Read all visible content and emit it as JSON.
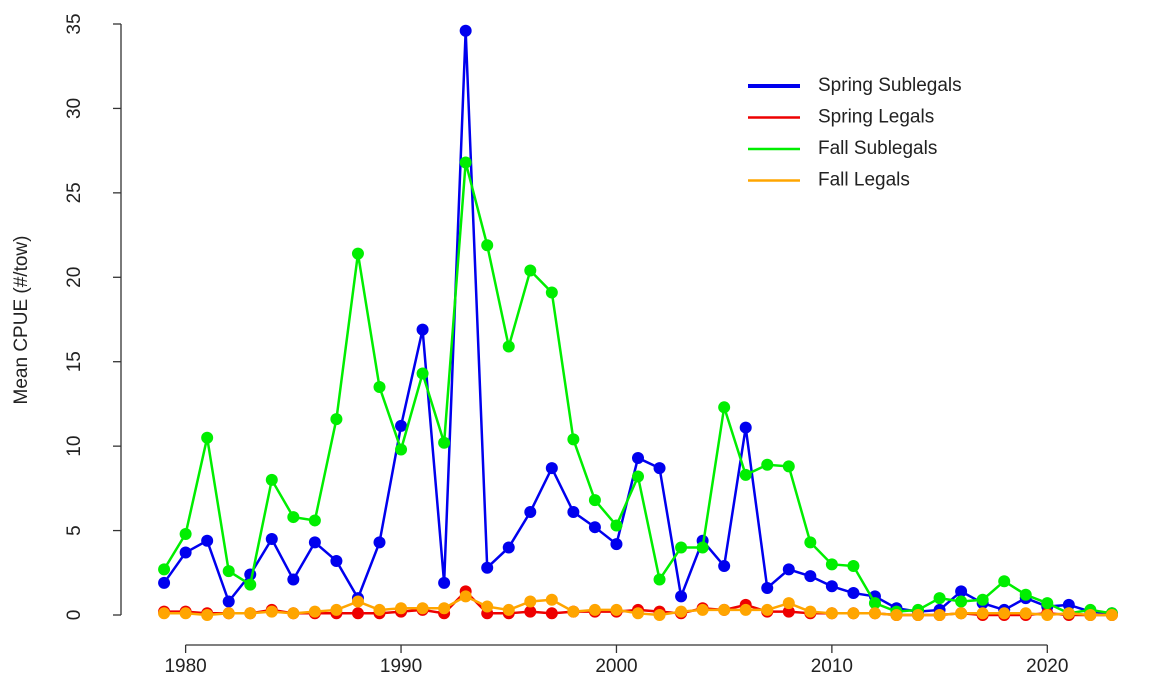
{
  "chart_data": {
    "type": "line",
    "y_label": "Mean CPUE (#/tow)",
    "x": [
      1979,
      1980,
      1981,
      1982,
      1983,
      1984,
      1985,
      1986,
      1987,
      1988,
      1989,
      1990,
      1991,
      1992,
      1993,
      1994,
      1995,
      1996,
      1997,
      1998,
      1999,
      2000,
      2001,
      2002,
      2003,
      2004,
      2005,
      2006,
      2007,
      2008,
      2009,
      2010,
      2011,
      2012,
      2013,
      2014,
      2015,
      2016,
      2017,
      2018,
      2019,
      2020,
      2021,
      2022,
      2023
    ],
    "series": [
      {
        "name": "Spring Sublegals",
        "color": "#0000ee",
        "values": [
          1.9,
          3.7,
          4.4,
          0.8,
          2.4,
          4.5,
          2.1,
          4.3,
          3.2,
          1.0,
          4.3,
          11.2,
          16.9,
          1.9,
          34.6,
          2.8,
          4.0,
          6.1,
          8.7,
          6.1,
          5.2,
          4.2,
          9.3,
          8.7,
          1.1,
          4.4,
          2.9,
          11.1,
          1.6,
          2.7,
          2.3,
          1.7,
          1.3,
          1.1,
          0.4,
          0.2,
          0.3,
          1.4,
          0.7,
          0.3,
          1.0,
          0.5,
          0.6,
          0.2,
          0.1
        ]
      },
      {
        "name": "Spring Legals",
        "color": "#ee0000",
        "values": [
          0.2,
          0.2,
          0.1,
          0.1,
          0.1,
          0.3,
          0.1,
          0.1,
          0.1,
          0.1,
          0.1,
          0.2,
          0.3,
          0.1,
          1.4,
          0.1,
          0.1,
          0.2,
          0.1,
          0.2,
          0.2,
          0.2,
          0.3,
          0.2,
          0.1,
          0.4,
          0.3,
          0.6,
          0.2,
          0.2,
          0.1,
          0.1,
          0.1,
          0.1,
          0.0,
          0.0,
          0.0,
          0.1,
          0.0,
          0.0,
          0.0,
          0.1,
          0.0,
          0.0,
          0.0
        ]
      },
      {
        "name": "Fall Sublegals",
        "color": "#00ee00",
        "values": [
          2.7,
          4.8,
          10.5,
          2.6,
          1.8,
          8.0,
          5.8,
          5.6,
          11.6,
          21.4,
          13.5,
          9.8,
          14.3,
          10.2,
          26.8,
          21.9,
          15.9,
          20.4,
          19.1,
          10.4,
          6.8,
          5.3,
          8.2,
          2.1,
          4.0,
          4.0,
          12.3,
          8.3,
          8.9,
          8.8,
          4.3,
          3.0,
          2.9,
          0.7,
          0.2,
          0.3,
          1.0,
          0.8,
          0.9,
          2.0,
          1.2,
          0.7,
          0.1,
          0.3,
          0.1
        ]
      },
      {
        "name": "Fall Legals",
        "color": "#ffa500",
        "values": [
          0.1,
          0.1,
          0.0,
          0.1,
          0.1,
          0.2,
          0.1,
          0.2,
          0.3,
          0.8,
          0.3,
          0.4,
          0.4,
          0.4,
          1.1,
          0.5,
          0.3,
          0.8,
          0.9,
          0.2,
          0.3,
          0.3,
          0.1,
          0.0,
          0.2,
          0.3,
          0.3,
          0.3,
          0.3,
          0.7,
          0.2,
          0.1,
          0.1,
          0.1,
          0.0,
          0.0,
          0.0,
          0.1,
          0.1,
          0.1,
          0.1,
          0.0,
          0.1,
          0.0,
          0.0
        ]
      }
    ],
    "xlim": [
      1977,
      2025
    ],
    "xticks": [
      1980,
      1990,
      2000,
      2010,
      2020
    ],
    "ylim": [
      0,
      35
    ],
    "yticks": [
      0,
      5,
      10,
      15,
      20,
      25,
      30,
      35
    ],
    "legend": "top-right"
  }
}
